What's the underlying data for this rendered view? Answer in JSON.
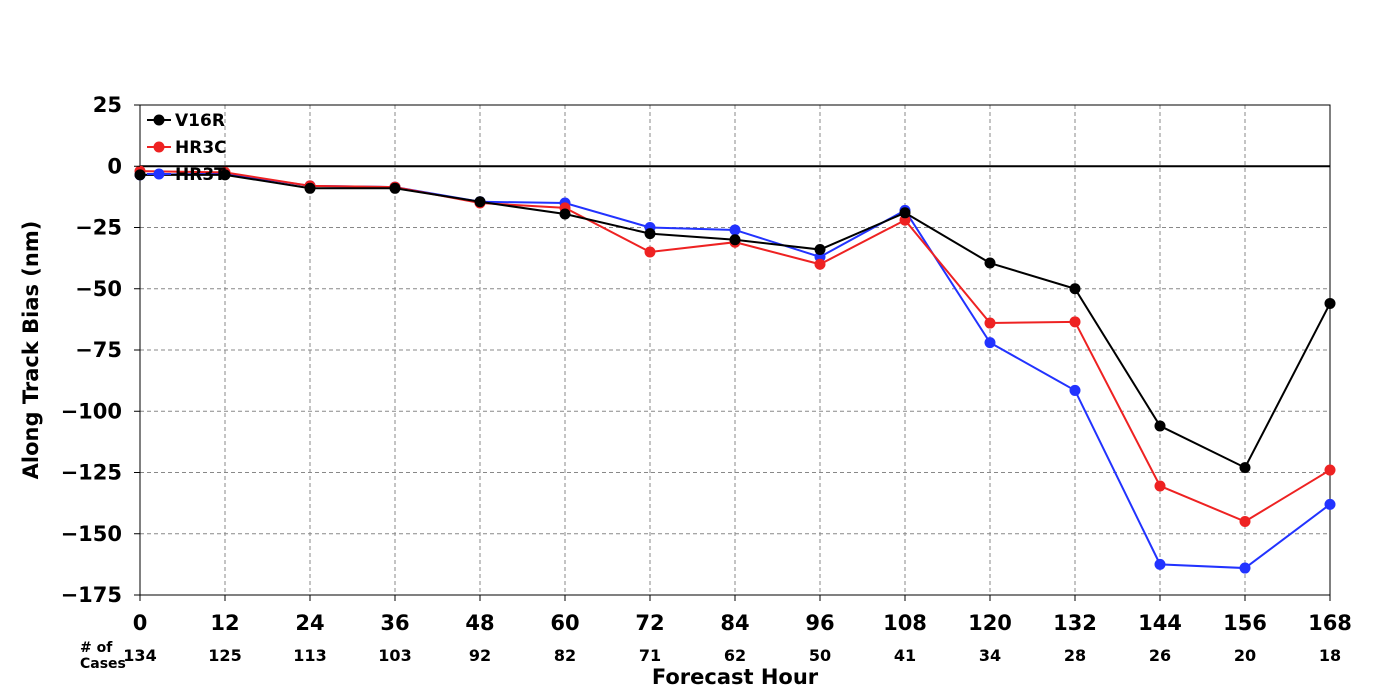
{
  "chart_data": {
    "type": "line",
    "title": "",
    "xlabel": "Forecast Hour",
    "ylabel": "Along Track Bias (nm)",
    "x": [
      0,
      12,
      24,
      36,
      48,
      60,
      72,
      84,
      96,
      108,
      120,
      132,
      144,
      156,
      168
    ],
    "xlim": [
      0,
      168
    ],
    "ylim": [
      -175,
      25
    ],
    "yticks": [
      25,
      0,
      -25,
      -50,
      -75,
      -100,
      -125,
      -150,
      -175
    ],
    "grid": true,
    "legend_position": "top-left",
    "zero_line": true,
    "cases_label": "# of Cases",
    "cases_label_lines": [
      "# of",
      "Cases"
    ],
    "cases": [
      134,
      125,
      113,
      103,
      92,
      82,
      71,
      62,
      50,
      41,
      34,
      28,
      26,
      20,
      18
    ],
    "series": [
      {
        "name": "V16R",
        "color": "#000000",
        "values": [
          -3.5,
          -3.5,
          -9,
          -9,
          -14.5,
          -19.5,
          -27.5,
          -30,
          -34,
          -19,
          -39.5,
          -50,
          -106,
          -123,
          -56
        ]
      },
      {
        "name": "HR3C",
        "color": "#ee2222",
        "values": [
          -2,
          -2.5,
          -8,
          -8.5,
          -15,
          -17,
          -35,
          -31,
          -40,
          -22,
          -64,
          -63.5,
          -130.5,
          -145,
          -124
        ]
      },
      {
        "name": "HR3T",
        "color": "#2233ff",
        "values": [
          -3.5,
          -3,
          -8,
          -8.5,
          -14.5,
          -15,
          -25,
          -26,
          -37,
          -18,
          -72,
          -91.5,
          -162.5,
          -164,
          -138
        ]
      }
    ]
  }
}
